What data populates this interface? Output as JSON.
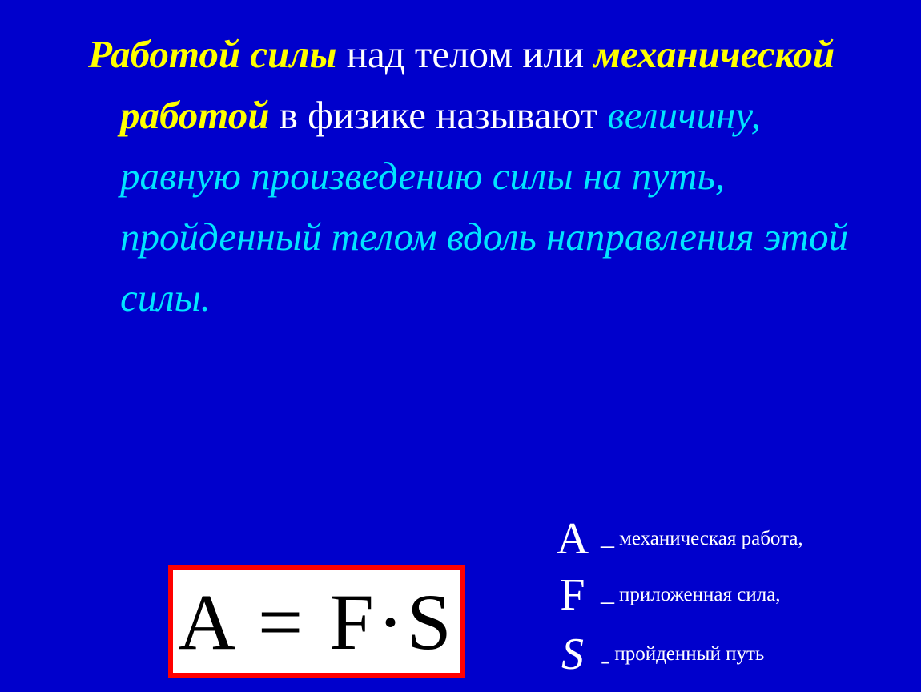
{
  "background_color": "#0000cc",
  "highlight_color": "#ffff00",
  "definition_color": "#00e5ff",
  "text_color": "#ffffff",
  "formula_border_color": "#ff0000",
  "formula_bg_color": "#ffffff",
  "formula_text_color": "#000000",
  "main": {
    "lead1": "Работой силы",
    "plain1": " над телом или ",
    "lead2": "механической работой",
    "plain2": " в физике называют ",
    "def": "величину, равную произведению силы на путь, пройденный телом вдоль направления этой силы."
  },
  "formula": "A = F·S",
  "legend": {
    "a_sym": "A",
    "a_dash": "–",
    "a_desc": "механическая работа,",
    "f_sym": "F",
    "f_dash": "–",
    "f_desc": "приложенная сила,",
    "s_sym": "S",
    "s_dash": "-",
    "s_desc": "пройденный путь"
  }
}
